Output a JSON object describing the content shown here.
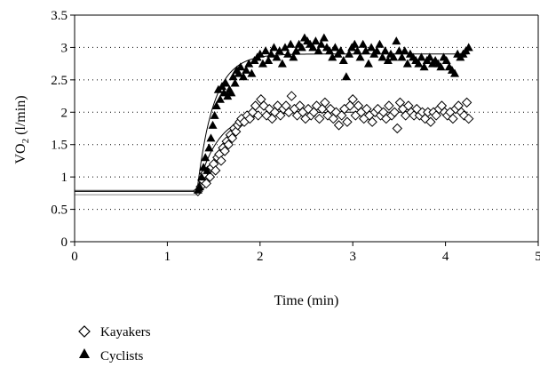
{
  "chart_data": {
    "type": "scatter",
    "xlabel": "Time (min)",
    "ylabel_main": "VO",
    "ylabel_sub": "2",
    "ylabel_unit": " (l/min)",
    "xlim": [
      0,
      5
    ],
    "ylim": [
      0,
      3.5
    ],
    "xticks": [
      "0",
      "1",
      "2",
      "3",
      "4",
      "5"
    ],
    "yticks": [
      "0",
      "0.5",
      "1",
      "1.5",
      "2",
      "2.5",
      "3",
      "3.5"
    ],
    "grid": "horizontal-dotted",
    "legend_position": "bottom-left",
    "series": [
      {
        "name": "Kayakers",
        "marker": "diamond-open",
        "baseline": 0.78,
        "onset": 1.32,
        "plateau": 2.0,
        "tau": 0.22,
        "points": [
          [
            1.33,
            0.78
          ],
          [
            1.36,
            0.85
          ],
          [
            1.38,
            0.95
          ],
          [
            1.4,
            1.05
          ],
          [
            1.42,
            0.9
          ],
          [
            1.44,
            1.1
          ],
          [
            1.46,
            1.0
          ],
          [
            1.48,
            1.15
          ],
          [
            1.5,
            1.2
          ],
          [
            1.52,
            1.1
          ],
          [
            1.54,
            1.3
          ],
          [
            1.56,
            1.35
          ],
          [
            1.58,
            1.25
          ],
          [
            1.6,
            1.45
          ],
          [
            1.62,
            1.4
          ],
          [
            1.64,
            1.55
          ],
          [
            1.66,
            1.5
          ],
          [
            1.68,
            1.65
          ],
          [
            1.7,
            1.6
          ],
          [
            1.72,
            1.75
          ],
          [
            1.74,
            1.7
          ],
          [
            1.76,
            1.8
          ],
          [
            1.78,
            1.85
          ],
          [
            1.8,
            1.9
          ],
          [
            1.83,
            1.85
          ],
          [
            1.86,
            1.95
          ],
          [
            1.89,
            1.9
          ],
          [
            1.92,
            2.0
          ],
          [
            1.95,
            2.1
          ],
          [
            1.98,
            1.95
          ],
          [
            2.01,
            2.2
          ],
          [
            2.04,
            2.1
          ],
          [
            2.07,
            1.95
          ],
          [
            2.1,
            2.05
          ],
          [
            2.13,
            1.9
          ],
          [
            2.16,
            2.0
          ],
          [
            2.19,
            2.1
          ],
          [
            2.22,
            1.95
          ],
          [
            2.25,
            2.05
          ],
          [
            2.28,
            2.1
          ],
          [
            2.31,
            2.0
          ],
          [
            2.34,
            2.25
          ],
          [
            2.37,
            2.05
          ],
          [
            2.4,
            1.95
          ],
          [
            2.43,
            2.1
          ],
          [
            2.46,
            2.0
          ],
          [
            2.49,
            1.9
          ],
          [
            2.52,
            2.05
          ],
          [
            2.55,
            1.95
          ],
          [
            2.58,
            2.0
          ],
          [
            2.61,
            2.1
          ],
          [
            2.64,
            1.9
          ],
          [
            2.67,
            2.05
          ],
          [
            2.7,
            2.15
          ],
          [
            2.73,
            1.95
          ],
          [
            2.76,
            2.05
          ],
          [
            2.79,
            1.9
          ],
          [
            2.82,
            2.0
          ],
          [
            2.85,
            1.8
          ],
          [
            2.88,
            1.95
          ],
          [
            2.91,
            2.05
          ],
          [
            2.94,
            1.85
          ],
          [
            2.97,
            2.1
          ],
          [
            3.0,
            2.2
          ],
          [
            3.03,
            1.95
          ],
          [
            3.06,
            2.1
          ],
          [
            3.09,
            2.0
          ],
          [
            3.12,
            1.9
          ],
          [
            3.15,
            2.05
          ],
          [
            3.18,
            1.95
          ],
          [
            3.21,
            1.85
          ],
          [
            3.24,
            2.0
          ],
          [
            3.27,
            2.05
          ],
          [
            3.3,
            1.95
          ],
          [
            3.33,
            2.0
          ],
          [
            3.36,
            1.9
          ],
          [
            3.39,
            2.1
          ],
          [
            3.42,
            1.95
          ],
          [
            3.45,
            2.0
          ],
          [
            3.48,
            1.75
          ],
          [
            3.51,
            2.15
          ],
          [
            3.54,
            2.05
          ],
          [
            3.57,
            1.95
          ],
          [
            3.6,
            2.1
          ],
          [
            3.63,
            2.0
          ],
          [
            3.66,
            1.95
          ],
          [
            3.69,
            2.05
          ],
          [
            3.72,
            1.95
          ],
          [
            3.75,
            2.0
          ],
          [
            3.78,
            1.9
          ],
          [
            3.81,
            2.0
          ],
          [
            3.84,
            1.85
          ],
          [
            3.87,
            2.0
          ],
          [
            3.9,
            1.95
          ],
          [
            3.93,
            2.05
          ],
          [
            3.96,
            2.1
          ],
          [
            3.99,
            2.0
          ],
          [
            4.02,
            1.95
          ],
          [
            4.05,
            2.0
          ],
          [
            4.08,
            1.9
          ],
          [
            4.11,
            2.05
          ],
          [
            4.14,
            2.1
          ],
          [
            4.17,
            2.0
          ],
          [
            4.2,
            1.95
          ],
          [
            4.23,
            2.15
          ],
          [
            4.25,
            1.9
          ]
        ]
      },
      {
        "name": "Cyclists",
        "marker": "triangle-filled",
        "baseline": 0.78,
        "onset": 1.32,
        "plateau": 2.9,
        "tau": 0.18,
        "points": [
          [
            1.33,
            0.8
          ],
          [
            1.35,
            0.85
          ],
          [
            1.37,
            1.0
          ],
          [
            1.39,
            1.15
          ],
          [
            1.41,
            1.3
          ],
          [
            1.43,
            1.1
          ],
          [
            1.45,
            1.45
          ],
          [
            1.47,
            1.6
          ],
          [
            1.49,
            1.8
          ],
          [
            1.51,
            1.95
          ],
          [
            1.53,
            2.1
          ],
          [
            1.55,
            2.35
          ],
          [
            1.57,
            2.2
          ],
          [
            1.59,
            2.4
          ],
          [
            1.61,
            2.3
          ],
          [
            1.63,
            2.45
          ],
          [
            1.65,
            2.25
          ],
          [
            1.67,
            2.35
          ],
          [
            1.69,
            2.3
          ],
          [
            1.71,
            2.55
          ],
          [
            1.73,
            2.45
          ],
          [
            1.75,
            2.65
          ],
          [
            1.77,
            2.6
          ],
          [
            1.79,
            2.7
          ],
          [
            1.82,
            2.55
          ],
          [
            1.85,
            2.65
          ],
          [
            1.88,
            2.75
          ],
          [
            1.91,
            2.6
          ],
          [
            1.94,
            2.8
          ],
          [
            1.97,
            2.85
          ],
          [
            2.0,
            2.9
          ],
          [
            2.03,
            2.75
          ],
          [
            2.06,
            2.95
          ],
          [
            2.09,
            2.8
          ],
          [
            2.12,
            2.9
          ],
          [
            2.15,
            3.0
          ],
          [
            2.18,
            2.85
          ],
          [
            2.21,
            2.95
          ],
          [
            2.24,
            2.75
          ],
          [
            2.27,
            3.0
          ],
          [
            2.3,
            2.9
          ],
          [
            2.33,
            3.05
          ],
          [
            2.36,
            2.85
          ],
          [
            2.39,
            2.95
          ],
          [
            2.42,
            3.05
          ],
          [
            2.45,
            3.0
          ],
          [
            2.48,
            3.15
          ],
          [
            2.51,
            3.1
          ],
          [
            2.54,
            3.05
          ],
          [
            2.57,
            3.0
          ],
          [
            2.6,
            3.1
          ],
          [
            2.63,
            2.95
          ],
          [
            2.66,
            3.05
          ],
          [
            2.69,
            3.15
          ],
          [
            2.72,
            3.0
          ],
          [
            2.75,
            2.95
          ],
          [
            2.78,
            2.85
          ],
          [
            2.81,
            3.0
          ],
          [
            2.84,
            2.9
          ],
          [
            2.87,
            2.95
          ],
          [
            2.9,
            2.8
          ],
          [
            2.93,
            2.55
          ],
          [
            2.96,
            2.9
          ],
          [
            2.99,
            3.0
          ],
          [
            3.02,
            3.05
          ],
          [
            3.05,
            2.95
          ],
          [
            3.08,
            2.85
          ],
          [
            3.11,
            3.05
          ],
          [
            3.14,
            2.95
          ],
          [
            3.17,
            2.75
          ],
          [
            3.2,
            3.0
          ],
          [
            3.23,
            2.9
          ],
          [
            3.26,
            2.95
          ],
          [
            3.29,
            3.05
          ],
          [
            3.32,
            2.85
          ],
          [
            3.35,
            2.95
          ],
          [
            3.38,
            2.8
          ],
          [
            3.41,
            2.9
          ],
          [
            3.44,
            2.85
          ],
          [
            3.47,
            3.1
          ],
          [
            3.5,
            2.95
          ],
          [
            3.53,
            2.85
          ],
          [
            3.56,
            2.95
          ],
          [
            3.59,
            2.75
          ],
          [
            3.62,
            2.9
          ],
          [
            3.65,
            2.85
          ],
          [
            3.68,
            2.8
          ],
          [
            3.71,
            2.75
          ],
          [
            3.74,
            2.85
          ],
          [
            3.77,
            2.7
          ],
          [
            3.8,
            2.8
          ],
          [
            3.83,
            2.85
          ],
          [
            3.86,
            2.75
          ],
          [
            3.89,
            2.8
          ],
          [
            3.92,
            2.75
          ],
          [
            3.95,
            2.7
          ],
          [
            3.98,
            2.85
          ],
          [
            4.01,
            2.8
          ],
          [
            4.04,
            2.7
          ],
          [
            4.07,
            2.65
          ],
          [
            4.1,
            2.6
          ],
          [
            4.13,
            2.9
          ],
          [
            4.16,
            2.85
          ],
          [
            4.19,
            2.9
          ],
          [
            4.22,
            2.95
          ],
          [
            4.25,
            3.0
          ]
        ]
      }
    ]
  }
}
